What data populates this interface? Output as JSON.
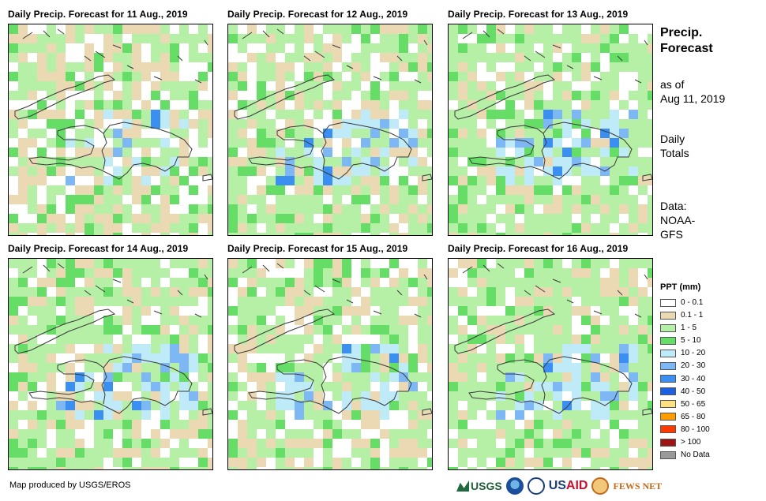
{
  "panels": [
    {
      "title": "Daily Precip. Forecast for 11 Aug., 2019",
      "seed": 11,
      "profile": "dry"
    },
    {
      "title": "Daily Precip. Forecast for 12 Aug., 2019",
      "seed": 12,
      "profile": "mixed"
    },
    {
      "title": "Daily Precip. Forecast for 13 Aug., 2019",
      "seed": 13,
      "profile": "wet"
    },
    {
      "title": "Daily Precip. Forecast for 14 Aug., 2019",
      "seed": 14,
      "profile": "wet"
    },
    {
      "title": "Daily Precip. Forecast for 15 Aug., 2019",
      "seed": 15,
      "profile": "mixed"
    },
    {
      "title": "Daily Precip. Forecast for 16 Aug., 2019",
      "seed": 16,
      "profile": "wet"
    }
  ],
  "sidebar": {
    "title_line1": "Precip.",
    "title_line2": "Forecast",
    "asof_line1": "as of",
    "asof_line2": "Aug 11, 2019",
    "daily_line1": "Daily",
    "daily_line2": "Totals",
    "data_line1": "Data:",
    "data_line2": "NOAA-",
    "data_line3": "GFS"
  },
  "legend": {
    "title": "PPT (mm)",
    "items": [
      {
        "label": "0 - 0.1",
        "color": "#ffffff"
      },
      {
        "label": "0.1 - 1",
        "color": "#ebd9b4"
      },
      {
        "label": "1 - 5",
        "color": "#b5f0a6"
      },
      {
        "label": "5 - 10",
        "color": "#66dd66"
      },
      {
        "label": "10 - 20",
        "color": "#bfeaf8"
      },
      {
        "label": "20 - 30",
        "color": "#7eb8f4"
      },
      {
        "label": "30 - 40",
        "color": "#3a8ff0"
      },
      {
        "label": "40 - 50",
        "color": "#1c5fe0"
      },
      {
        "label": "50 - 65",
        "color": "#ffe082"
      },
      {
        "label": "65 - 80",
        "color": "#ff9d00"
      },
      {
        "label": "80 - 100",
        "color": "#ff3a00"
      },
      {
        "label": "> 100",
        "color": "#a01414"
      },
      {
        "label": "No Data",
        "color": "#9a9a9a"
      }
    ]
  },
  "footer": {
    "credit": "Map produced by USGS/EROS",
    "logo_usgs": "USGS",
    "logo_usaid_a": "US",
    "logo_usaid_b": "AID",
    "logo_fews": "FEWS NET"
  }
}
